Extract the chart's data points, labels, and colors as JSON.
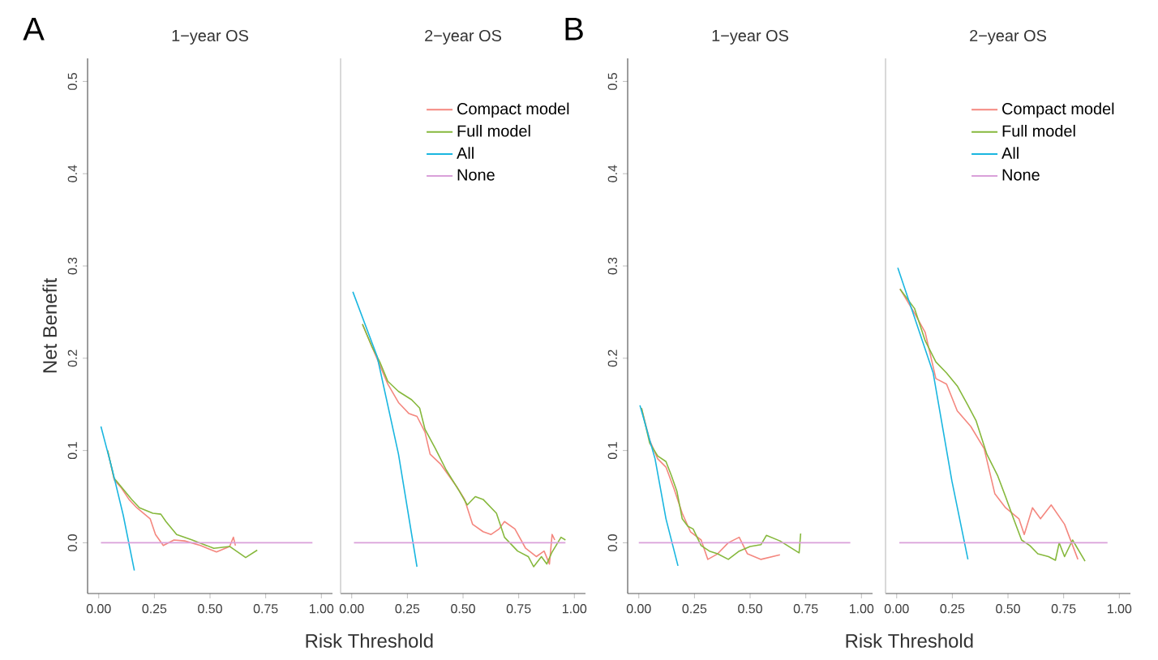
{
  "chart_data": [
    {
      "type": "line",
      "title": "1−year OS",
      "ylabel": "Net Benefit",
      "xlabel": "Risk Threshold",
      "annotations": [
        "A"
      ],
      "xlim": [
        -0.05,
        1.05
      ],
      "ylim": [
        -0.055,
        0.525
      ],
      "xticks": [
        {
          "value": 0,
          "label": "0.00"
        },
        {
          "value": 0.25,
          "label": "0.25"
        },
        {
          "value": 0.5,
          "label": "0.50"
        },
        {
          "value": 0.75,
          "label": "0.75"
        },
        {
          "value": 1,
          "label": "1.00"
        }
      ],
      "yticks": [
        {
          "value": 0,
          "label": "0.0"
        },
        {
          "value": 0.1,
          "label": "0.1"
        },
        {
          "value": 0.2,
          "label": "0.2"
        },
        {
          "value": 0.3,
          "label": "0.3"
        },
        {
          "value": 0.4,
          "label": "0.4"
        },
        {
          "value": 0.5,
          "label": "0.5"
        }
      ],
      "series": [
        {
          "color": "#f4877f",
          "x": [
            0.04,
            0.07,
            0.1,
            0.136,
            0.171,
            0.231,
            0.255,
            0.29,
            0.338,
            0.386,
            0.457,
            0.529,
            0.588,
            0.605,
            0.614
          ],
          "values": [
            0.1,
            0.068,
            0.06,
            0.047,
            0.038,
            0.026,
            0.009,
            -0.003,
            0.003,
            0.002,
            -0.003,
            -0.01,
            -0.004,
            0.006,
            -0.003
          ]
        },
        {
          "color": "#86b83c",
          "x": [
            0.04,
            0.069,
            0.1,
            0.148,
            0.183,
            0.243,
            0.279,
            0.302,
            0.35,
            0.42,
            0.517,
            0.588,
            0.66,
            0.712
          ],
          "values": [
            0.1,
            0.07,
            0.061,
            0.047,
            0.038,
            0.032,
            0.031,
            0.023,
            0.009,
            0.003,
            -0.006,
            -0.004,
            -0.016,
            -0.008
          ]
        },
        {
          "color": "#1ab6e0",
          "x": [
            0.01,
            0.06,
            0.11,
            0.16
          ],
          "values": [
            0.126,
            0.08,
            0.03,
            -0.03
          ]
        },
        {
          "color": "#d9a0d9",
          "x": [
            0.01,
            0.96
          ],
          "values": [
            0,
            0
          ]
        }
      ]
    },
    {
      "type": "line",
      "title": "2−year OS",
      "legend": "top right",
      "tick_labels": "x",
      "xlim": [
        -0.05,
        1.05
      ],
      "ylim": [
        -0.055,
        0.525
      ],
      "xticks": [
        {
          "value": 0,
          "label": "0.00"
        },
        {
          "value": 0.25,
          "label": "0.25"
        },
        {
          "value": 0.5,
          "label": "0.50"
        },
        {
          "value": 0.75,
          "label": "0.75"
        },
        {
          "value": 1,
          "label": "1.00"
        }
      ],
      "series": [
        {
          "name": "Compact model",
          "color": "#f4877f",
          "x": [
            0.048,
            0.09,
            0.162,
            0.21,
            0.257,
            0.293,
            0.329,
            0.352,
            0.4,
            0.471,
            0.507,
            0.543,
            0.59,
            0.626,
            0.662,
            0.686,
            0.733,
            0.781,
            0.829,
            0.864,
            0.888,
            0.9,
            0.912
          ],
          "values": [
            0.237,
            0.213,
            0.172,
            0.152,
            0.14,
            0.137,
            0.12,
            0.096,
            0.085,
            0.061,
            0.047,
            0.02,
            0.012,
            0.009,
            0.015,
            0.023,
            0.015,
            -0.006,
            -0.015,
            -0.009,
            -0.023,
            0.009,
            0.003
          ]
        },
        {
          "name": "Full model",
          "color": "#86b83c",
          "x": [
            0.048,
            0.09,
            0.126,
            0.162,
            0.21,
            0.269,
            0.305,
            0.329,
            0.376,
            0.424,
            0.483,
            0.519,
            0.555,
            0.59,
            0.65,
            0.686,
            0.745,
            0.793,
            0.817,
            0.852,
            0.876,
            0.9,
            0.94,
            0.96
          ],
          "values": [
            0.237,
            0.213,
            0.196,
            0.175,
            0.164,
            0.155,
            0.146,
            0.123,
            0.102,
            0.079,
            0.056,
            0.041,
            0.05,
            0.047,
            0.032,
            0.006,
            -0.009,
            -0.015,
            -0.026,
            -0.015,
            -0.023,
            -0.01,
            0.006,
            0.003
          ]
        },
        {
          "name": "All",
          "color": "#1ab6e0",
          "x": [
            0.005,
            0.114,
            0.21,
            0.293
          ],
          "values": [
            0.272,
            0.202,
            0.096,
            -0.026
          ]
        },
        {
          "name": "None",
          "color": "#d9a0d9",
          "x": [
            0.01,
            0.96
          ],
          "values": [
            0,
            0
          ]
        }
      ]
    },
    {
      "type": "line",
      "title": "1−year OS",
      "xlabel": "Risk Threshold",
      "annotations": [
        "B"
      ],
      "xlim": [
        -0.05,
        1.05
      ],
      "ylim": [
        -0.055,
        0.525
      ],
      "xticks": [
        {
          "value": 0,
          "label": "0.00"
        },
        {
          "value": 0.25,
          "label": "0.25"
        },
        {
          "value": 0.5,
          "label": "0.50"
        },
        {
          "value": 0.75,
          "label": "0.75"
        },
        {
          "value": 1,
          "label": "1.00"
        }
      ],
      "yticks": [
        {
          "value": 0,
          "label": "0.0"
        },
        {
          "value": 0.1,
          "label": "0.1"
        },
        {
          "value": 0.2,
          "label": "0.2"
        },
        {
          "value": 0.3,
          "label": "0.3"
        },
        {
          "value": 0.4,
          "label": "0.4"
        },
        {
          "value": 0.5,
          "label": "0.5"
        }
      ],
      "series": [
        {
          "color": "#f4877f",
          "x": [
            0.012,
            0.049,
            0.085,
            0.122,
            0.159,
            0.195,
            0.232,
            0.28,
            0.31,
            0.354,
            0.402,
            0.451,
            0.488,
            0.549,
            0.634
          ],
          "values": [
            0.146,
            0.111,
            0.091,
            0.082,
            0.058,
            0.032,
            0.012,
            0.003,
            -0.018,
            -0.012,
            0,
            0.006,
            -0.012,
            -0.018,
            -0.013
          ]
        },
        {
          "color": "#86b83c",
          "x": [
            0.012,
            0.049,
            0.085,
            0.122,
            0.146,
            0.171,
            0.195,
            0.22,
            0.244,
            0.28,
            0.317,
            0.354,
            0.402,
            0.451,
            0.5,
            0.549,
            0.573,
            0.634,
            0.72,
            0.727
          ],
          "values": [
            0.146,
            0.108,
            0.094,
            0.088,
            0.073,
            0.056,
            0.026,
            0.018,
            0.015,
            -0.003,
            -0.009,
            -0.012,
            -0.018,
            -0.009,
            -0.004,
            -0.002,
            0.008,
            0.002,
            -0.011,
            0.01
          ]
        },
        {
          "color": "#1ab6e0",
          "x": [
            0.005,
            0.073,
            0.122,
            0.176
          ],
          "values": [
            0.149,
            0.091,
            0.026,
            -0.025
          ]
        },
        {
          "color": "#d9a0d9",
          "x": [
            0,
            0.95
          ],
          "values": [
            0,
            0
          ]
        }
      ]
    },
    {
      "type": "line",
      "title": "2−year OS",
      "legend": "top right",
      "tick_labels": "x",
      "xlim": [
        -0.05,
        1.05
      ],
      "ylim": [
        -0.055,
        0.525
      ],
      "xticks": [
        {
          "value": 0,
          "label": "0.00"
        },
        {
          "value": 0.25,
          "label": "0.25"
        },
        {
          "value": 0.5,
          "label": "0.50"
        },
        {
          "value": 0.75,
          "label": "0.75"
        },
        {
          "value": 1,
          "label": "1.00"
        }
      ],
      "series": [
        {
          "name": "Compact model",
          "color": "#f4877f",
          "x": [
            0.015,
            0.08,
            0.128,
            0.176,
            0.224,
            0.272,
            0.333,
            0.393,
            0.441,
            0.489,
            0.549,
            0.573,
            0.61,
            0.646,
            0.694,
            0.754,
            0.814
          ],
          "values": [
            0.275,
            0.249,
            0.228,
            0.178,
            0.172,
            0.143,
            0.126,
            0.102,
            0.053,
            0.038,
            0.026,
            0.009,
            0.038,
            0.026,
            0.041,
            0.02,
            -0.018
          ]
        },
        {
          "name": "Full model",
          "color": "#86b83c",
          "x": [
            0.015,
            0.08,
            0.128,
            0.176,
            0.224,
            0.272,
            0.32,
            0.357,
            0.405,
            0.453,
            0.489,
            0.525,
            0.561,
            0.598,
            0.634,
            0.682,
            0.713,
            0.73,
            0.754,
            0.79,
            0.846
          ],
          "values": [
            0.275,
            0.254,
            0.219,
            0.196,
            0.184,
            0.17,
            0.149,
            0.132,
            0.096,
            0.073,
            0.05,
            0.026,
            0.003,
            -0.003,
            -0.012,
            -0.015,
            -0.019,
            0,
            -0.015,
            0.003,
            -0.02
          ]
        },
        {
          "name": "All",
          "color": "#1ab6e0",
          "x": [
            0.005,
            0.164,
            0.248,
            0.32
          ],
          "values": [
            0.298,
            0.184,
            0.067,
            -0.018
          ]
        },
        {
          "name": "None",
          "color": "#d9a0d9",
          "x": [
            0.012,
            0.947
          ],
          "values": [
            0,
            0
          ]
        }
      ]
    }
  ]
}
